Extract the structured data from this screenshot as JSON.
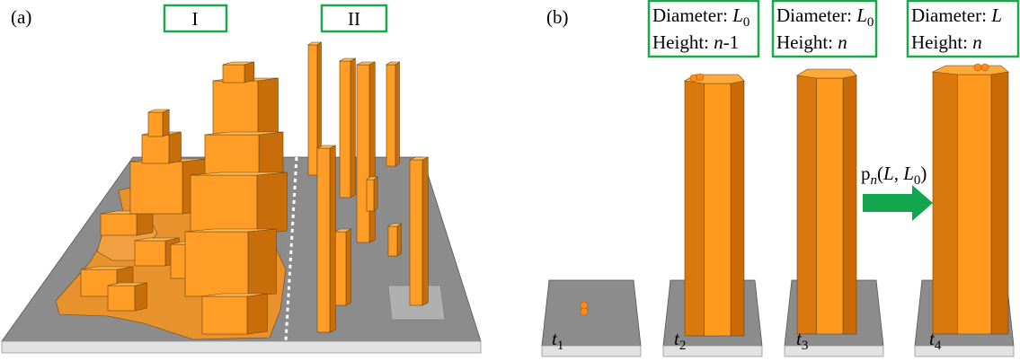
{
  "panel_a": {
    "label": "(a)",
    "regions": [
      "I",
      "II"
    ]
  },
  "panel_b": {
    "label": "(b)",
    "boxes": [
      {
        "lines": [
          [
            {
              "text": "Diameter: ",
              "style": "roman"
            },
            {
              "text": "L",
              "style": "italic"
            },
            {
              "text": "0",
              "style": "sub"
            }
          ],
          [
            {
              "text": "Height: ",
              "style": "roman"
            },
            {
              "text": "n",
              "style": "italic"
            },
            {
              "text": "-1",
              "style": "roman"
            }
          ]
        ]
      },
      {
        "lines": [
          [
            {
              "text": "Diameter: ",
              "style": "roman"
            },
            {
              "text": "L",
              "style": "italic"
            },
            {
              "text": "0",
              "style": "sub"
            }
          ],
          [
            {
              "text": "Height: ",
              "style": "roman"
            },
            {
              "text": "n",
              "style": "italic"
            }
          ]
        ]
      },
      {
        "lines": [
          [
            {
              "text": "Diameter: ",
              "style": "roman"
            },
            {
              "text": "L",
              "style": "italic"
            }
          ],
          [
            {
              "text": "Height: ",
              "style": "roman"
            },
            {
              "text": "n",
              "style": "italic"
            }
          ]
        ]
      }
    ],
    "arrow_label": [
      {
        "text": "p",
        "style": "roman"
      },
      {
        "text": "n",
        "style": "sub-italic"
      },
      {
        "text": "(",
        "style": "roman"
      },
      {
        "text": "L",
        "style": "italic"
      },
      {
        "text": ", ",
        "style": "roman"
      },
      {
        "text": "L",
        "style": "italic"
      },
      {
        "text": "0",
        "style": "sub"
      },
      {
        "text": ")",
        "style": "roman"
      }
    ],
    "steps": [
      [
        {
          "text": "t",
          "style": "italic"
        },
        {
          "text": "1",
          "style": "sub"
        }
      ],
      [
        {
          "text": "t",
          "style": "italic"
        },
        {
          "text": "2",
          "style": "sub"
        }
      ],
      [
        {
          "text": "t",
          "style": "italic"
        },
        {
          "text": "3",
          "style": "sub"
        }
      ],
      [
        {
          "text": "t",
          "style": "italic"
        },
        {
          "text": "4",
          "style": "sub"
        }
      ]
    ]
  }
}
